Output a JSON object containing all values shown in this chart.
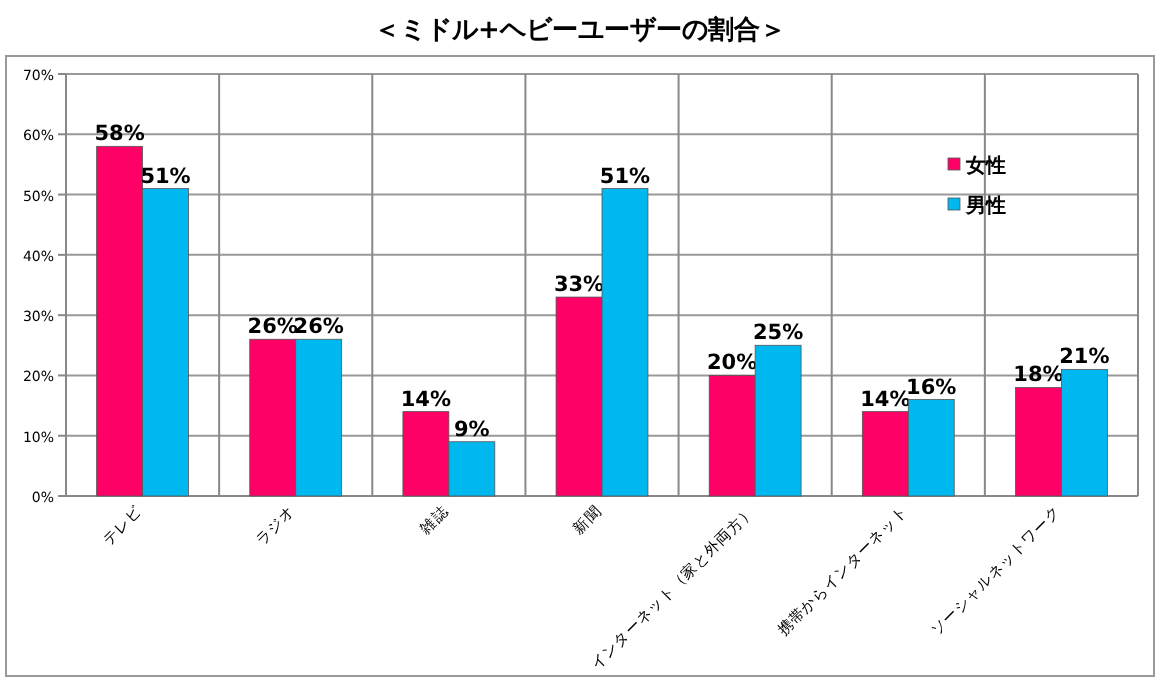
{
  "chart_data": {
    "type": "bar",
    "title": "＜ミドル+ヘビーユーザーの割合＞",
    "categories": [
      "テレビ",
      "ラジオ",
      "雑誌",
      "新聞",
      "インターネット（家と外両方）",
      "携帯からインターネット",
      "ソーシャルネットワーク"
    ],
    "series": [
      {
        "name": "女性",
        "color": "#ff0066",
        "values": [
          58,
          26,
          14,
          33,
          20,
          14,
          18
        ],
        "value_labels": [
          "58%",
          "26%",
          "14%",
          "33%",
          "20%",
          "14%",
          "18%"
        ]
      },
      {
        "name": "男性",
        "color": "#00b8f0",
        "values": [
          51,
          26,
          9,
          51,
          25,
          16,
          21
        ],
        "value_labels": [
          "51%",
          "26%",
          "9%",
          "51%",
          "25%",
          "16%",
          "21%"
        ]
      }
    ],
    "ylim": [
      0,
      70
    ],
    "yticks": [
      {
        "value": 0,
        "label": "0%"
      },
      {
        "value": 10,
        "label": "10%"
      },
      {
        "value": 20,
        "label": "20%"
      },
      {
        "value": 30,
        "label": "30%"
      },
      {
        "value": 40,
        "label": "40%"
      },
      {
        "value": 50,
        "label": "50%"
      },
      {
        "value": 60,
        "label": "60%"
      },
      {
        "value": 70,
        "label": "70%"
      }
    ],
    "grid": true,
    "legend": "top right"
  }
}
